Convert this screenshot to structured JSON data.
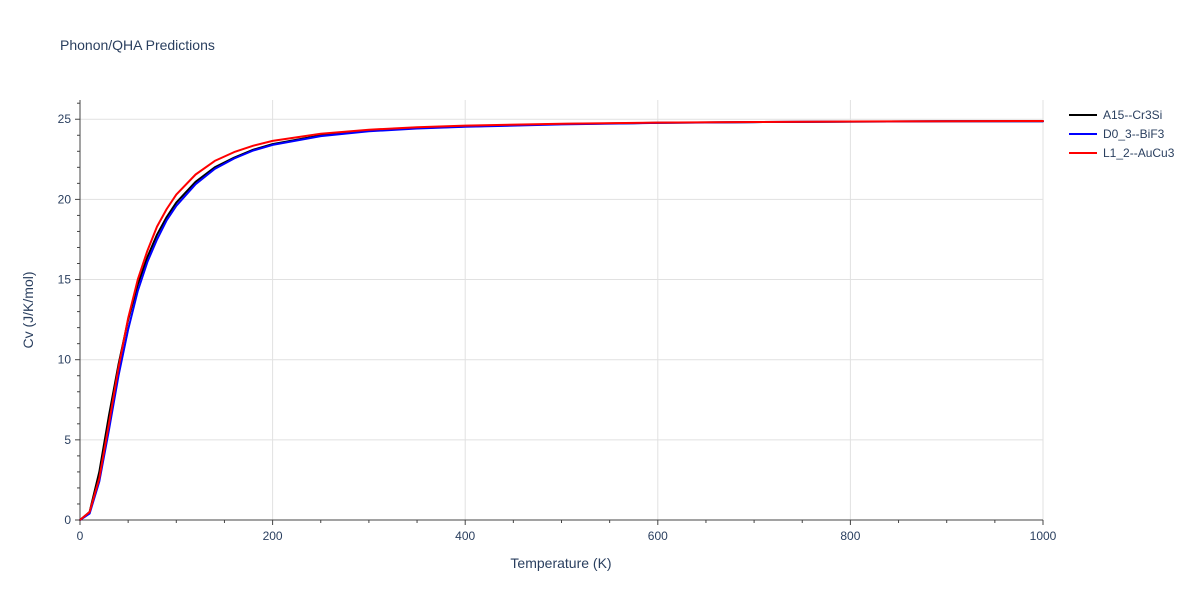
{
  "chart_data": {
    "type": "line",
    "title": "Phonon/QHA Predictions",
    "xlabel": "Temperature (K)",
    "ylabel": "Cv (J/K/mol)",
    "xlim": [
      0,
      1000
    ],
    "ylim": [
      0,
      26.2
    ],
    "x_ticks": [
      0,
      200,
      400,
      600,
      800,
      1000
    ],
    "y_ticks": [
      0,
      5,
      10,
      15,
      20,
      25
    ],
    "x_tick_labels": [
      "0",
      "200",
      "400",
      "600",
      "800",
      "1000"
    ],
    "y_tick_labels": [
      "0",
      "5",
      "10",
      "15",
      "20",
      "25"
    ],
    "grid": true,
    "legend_position": "top-right",
    "x": [
      0,
      10,
      20,
      30,
      40,
      50,
      60,
      70,
      80,
      90,
      100,
      120,
      140,
      160,
      180,
      200,
      250,
      300,
      350,
      400,
      500,
      600,
      700,
      800,
      900,
      1000
    ],
    "series": [
      {
        "name": "A15--Cr3Si",
        "color": "#000000",
        "values": [
          0,
          0.5,
          3.0,
          6.5,
          9.7,
          12.5,
          14.7,
          16.4,
          17.8,
          18.9,
          19.8,
          21.1,
          22.0,
          22.6,
          23.1,
          23.45,
          24.0,
          24.3,
          24.45,
          24.55,
          24.7,
          24.78,
          24.82,
          24.85,
          24.87,
          24.88
        ]
      },
      {
        "name": "D0_3--BiF3",
        "color": "#0000ff",
        "values": [
          0,
          0.4,
          2.4,
          5.6,
          9.0,
          11.9,
          14.3,
          16.1,
          17.5,
          18.7,
          19.6,
          20.95,
          21.9,
          22.55,
          23.05,
          23.4,
          23.95,
          24.25,
          24.42,
          24.53,
          24.68,
          24.77,
          24.82,
          24.85,
          24.87,
          24.88
        ]
      },
      {
        "name": "L1_2--AuCu3",
        "color": "#ff0000",
        "values": [
          0,
          0.5,
          2.6,
          6.0,
          9.5,
          12.6,
          15.0,
          16.8,
          18.3,
          19.4,
          20.3,
          21.55,
          22.4,
          22.95,
          23.35,
          23.65,
          24.1,
          24.35,
          24.5,
          24.6,
          24.72,
          24.79,
          24.83,
          24.86,
          24.88,
          24.89
        ]
      }
    ]
  }
}
